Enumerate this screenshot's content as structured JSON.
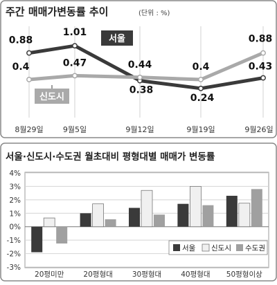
{
  "colors": {
    "seoul": "#3a3a3a",
    "newtown": "#a9a9a9",
    "metro": "#a0a0a0",
    "frame": "#888888",
    "grid": "#cfcfcf"
  },
  "chart_data": [
    {
      "type": "line",
      "title": "주간 매매가변동률 추이",
      "unit": "(단위 : %)",
      "x": [
        "8월29일",
        "9월5일",
        "9월12일",
        "9월19일",
        "9월26일"
      ],
      "series": [
        {
          "name": "서울",
          "values": [
            0.88,
            1.01,
            0.38,
            0.24,
            0.43
          ]
        },
        {
          "name": "신도시",
          "values": [
            0.4,
            0.47,
            0.44,
            0.4,
            0.88
          ]
        }
      ]
    },
    {
      "type": "bar",
      "title": "서울·신도시·수도권 월초대비 평형대별 매매가 변동률",
      "categories": [
        "20평미만",
        "20평형대",
        "30평형대",
        "40평형대",
        "50평형이상"
      ],
      "ylim": [
        -3,
        4
      ],
      "yticks": [
        "4%",
        "3%",
        "2%",
        "1%",
        "0%",
        "-1%",
        "-2%",
        "-3%"
      ],
      "legend_position": "bottom-right",
      "series": [
        {
          "name": "서울",
          "values": [
            -1.9,
            1.0,
            1.4,
            1.7,
            2.3
          ]
        },
        {
          "name": "신도시",
          "values": [
            0.65,
            1.7,
            2.7,
            3.0,
            1.75
          ]
        },
        {
          "name": "수도권",
          "values": [
            -1.25,
            0.55,
            0.9,
            1.6,
            2.8
          ]
        }
      ]
    }
  ]
}
